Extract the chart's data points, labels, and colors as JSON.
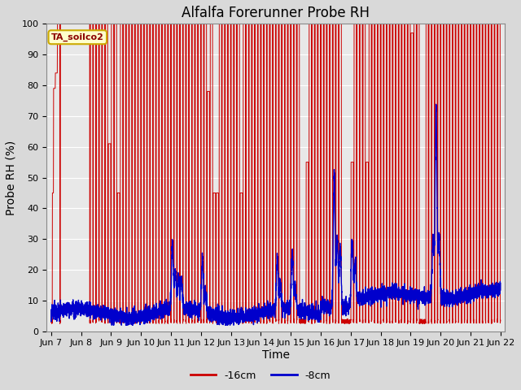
{
  "title": "Alfalfa Forerunner Probe RH",
  "ylabel": "Probe RH (%)",
  "xlabel": "Time",
  "legend_label1": "-16cm",
  "legend_label2": "-8cm",
  "legend_color1": "#cc0000",
  "legend_color2": "#0000cc",
  "watermark_text": "TA_soilco2",
  "ylim": [
    0,
    100
  ],
  "xlim_start": 6.85,
  "xlim_end": 22.15,
  "xtick_positions": [
    7,
    8,
    9,
    10,
    11,
    12,
    13,
    14,
    15,
    16,
    17,
    18,
    19,
    20,
    21,
    22
  ],
  "xtick_labels": [
    "Jun 7",
    "Jun 8",
    "Jun 9",
    "Jun 10",
    "Jun 11",
    "Jun 12",
    "Jun 13",
    "Jun 14",
    "Jun 15",
    "Jun 16",
    "Jun 17",
    "Jun 18",
    "Jun 19",
    "Jun 20",
    "Jun 21",
    "Jun 22"
  ],
  "background_color": "#d9d9d9",
  "plot_bg_color": "#e8e8e8",
  "grid_color": "#ffffff",
  "title_fontsize": 12,
  "axis_fontsize": 10,
  "tick_fontsize": 8,
  "red_spikes": [
    [
      7.08,
      45
    ],
    [
      7.12,
      79
    ],
    [
      7.18,
      84
    ],
    [
      7.25,
      100
    ],
    [
      7.35,
      100
    ],
    [
      7.42,
      100
    ],
    [
      7.5,
      100
    ],
    [
      7.58,
      100
    ],
    [
      7.65,
      100
    ],
    [
      7.72,
      100
    ],
    [
      7.8,
      100
    ],
    [
      7.88,
      100
    ],
    [
      7.95,
      100
    ],
    [
      8.02,
      100
    ],
    [
      8.1,
      100
    ],
    [
      8.18,
      100
    ],
    [
      8.25,
      100
    ],
    [
      8.35,
      100
    ],
    [
      8.45,
      100
    ],
    [
      8.55,
      100
    ],
    [
      8.65,
      100
    ],
    [
      8.75,
      100
    ],
    [
      8.85,
      100
    ],
    [
      8.95,
      61
    ],
    [
      9.05,
      100
    ],
    [
      9.15,
      100
    ],
    [
      9.25,
      45
    ],
    [
      9.35,
      100
    ],
    [
      9.45,
      100
    ],
    [
      9.55,
      100
    ],
    [
      9.65,
      100
    ],
    [
      9.75,
      100
    ],
    [
      9.85,
      100
    ],
    [
      9.95,
      100
    ],
    [
      10.05,
      100
    ],
    [
      10.15,
      100
    ],
    [
      10.25,
      100
    ],
    [
      10.35,
      100
    ],
    [
      10.45,
      100
    ],
    [
      10.55,
      100
    ],
    [
      10.65,
      100
    ],
    [
      10.75,
      100
    ],
    [
      10.85,
      100
    ],
    [
      10.95,
      100
    ],
    [
      11.05,
      100
    ],
    [
      11.15,
      100
    ],
    [
      11.25,
      100
    ],
    [
      11.35,
      100
    ],
    [
      11.45,
      100
    ],
    [
      11.55,
      100
    ],
    [
      11.65,
      100
    ],
    [
      11.75,
      100
    ],
    [
      11.85,
      100
    ],
    [
      11.95,
      100
    ],
    [
      12.05,
      100
    ],
    [
      12.15,
      100
    ],
    [
      12.25,
      78
    ],
    [
      12.35,
      100
    ],
    [
      12.45,
      45
    ],
    [
      12.55,
      45
    ],
    [
      12.65,
      100
    ],
    [
      12.75,
      100
    ],
    [
      12.85,
      100
    ],
    [
      12.95,
      100
    ],
    [
      13.05,
      100
    ],
    [
      13.15,
      100
    ],
    [
      13.25,
      100
    ],
    [
      13.35,
      45
    ],
    [
      13.45,
      100
    ],
    [
      13.55,
      100
    ],
    [
      13.65,
      100
    ],
    [
      13.75,
      100
    ],
    [
      13.85,
      100
    ],
    [
      13.95,
      100
    ],
    [
      14.05,
      100
    ],
    [
      14.15,
      100
    ],
    [
      14.25,
      100
    ],
    [
      14.35,
      100
    ],
    [
      14.45,
      100
    ],
    [
      14.55,
      100
    ],
    [
      14.65,
      100
    ],
    [
      14.75,
      100
    ],
    [
      14.85,
      100
    ],
    [
      14.95,
      100
    ],
    [
      15.05,
      100
    ],
    [
      15.15,
      100
    ],
    [
      15.25,
      100
    ],
    [
      15.55,
      55
    ],
    [
      15.65,
      100
    ],
    [
      15.75,
      100
    ],
    [
      15.85,
      100
    ],
    [
      15.95,
      100
    ],
    [
      16.05,
      100
    ],
    [
      16.15,
      100
    ],
    [
      16.25,
      100
    ],
    [
      16.35,
      100
    ],
    [
      16.45,
      100
    ],
    [
      16.55,
      100
    ],
    [
      16.65,
      100
    ],
    [
      17.05,
      55
    ],
    [
      17.15,
      100
    ],
    [
      17.25,
      100
    ],
    [
      17.35,
      100
    ],
    [
      17.45,
      100
    ],
    [
      17.55,
      55
    ],
    [
      17.65,
      100
    ],
    [
      17.75,
      100
    ],
    [
      17.85,
      100
    ],
    [
      17.95,
      100
    ],
    [
      18.05,
      100
    ],
    [
      18.15,
      100
    ],
    [
      18.25,
      100
    ],
    [
      18.35,
      100
    ],
    [
      18.45,
      100
    ],
    [
      18.55,
      100
    ],
    [
      18.65,
      100
    ],
    [
      18.75,
      100
    ],
    [
      18.85,
      100
    ],
    [
      18.95,
      100
    ],
    [
      19.05,
      97
    ],
    [
      19.15,
      100
    ],
    [
      19.25,
      100
    ],
    [
      19.55,
      100
    ],
    [
      19.65,
      100
    ],
    [
      19.75,
      100
    ],
    [
      19.85,
      100
    ],
    [
      19.95,
      100
    ],
    [
      20.05,
      100
    ],
    [
      20.15,
      100
    ],
    [
      20.25,
      100
    ],
    [
      20.35,
      100
    ],
    [
      20.45,
      100
    ],
    [
      20.55,
      100
    ],
    [
      20.65,
      100
    ],
    [
      20.75,
      100
    ],
    [
      20.85,
      100
    ],
    [
      20.95,
      100
    ],
    [
      21.05,
      100
    ],
    [
      21.15,
      100
    ],
    [
      21.25,
      100
    ],
    [
      21.35,
      100
    ],
    [
      21.45,
      100
    ],
    [
      21.55,
      100
    ],
    [
      21.65,
      100
    ],
    [
      21.75,
      100
    ],
    [
      21.85,
      100
    ],
    [
      21.95,
      100
    ]
  ],
  "blue_spikes": [
    [
      11.05,
      21
    ],
    [
      11.15,
      12
    ],
    [
      11.25,
      11
    ],
    [
      11.35,
      10
    ],
    [
      12.05,
      17
    ],
    [
      12.15,
      7
    ],
    [
      14.55,
      17
    ],
    [
      14.65,
      8
    ],
    [
      15.05,
      18
    ],
    [
      15.15,
      7
    ],
    [
      16.45,
      43
    ],
    [
      16.55,
      22
    ],
    [
      16.65,
      20
    ],
    [
      17.05,
      20
    ],
    [
      17.15,
      12
    ],
    [
      19.75,
      20
    ],
    [
      19.85,
      62
    ],
    [
      19.95,
      20
    ]
  ]
}
